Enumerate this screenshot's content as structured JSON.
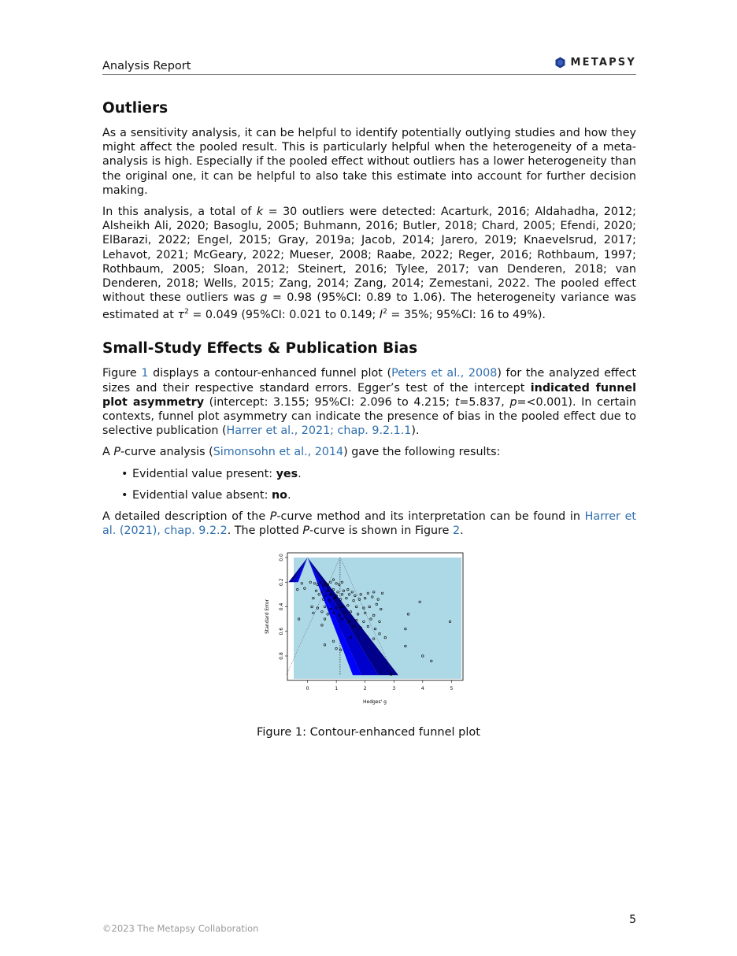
{
  "header": {
    "title": "Analysis Report",
    "brand": "METAPSY"
  },
  "outliers": {
    "heading": "Outliers",
    "p1": "As a sensitivity analysis, it can be helpful to identify potentially outlying studies and how they might affect the pooled result. This is particularly helpful when the heterogeneity of a meta-analysis is high. Especially if the pooled effect without outliers has a lower heterogeneity than the original one, it can be helpful to also take this estimate into account for further decision making.",
    "p2_a": "In this analysis, a total of ",
    "p2_k": "k",
    "p2_b": " = 30 outliers were detected: Acarturk, 2016; Aldahadha, 2012; Alsheikh Ali, 2020; Basoglu, 2005; Buhmann, 2016; Butler, 2018; Chard, 2005; Efendi, 2020; ElBarazi, 2022; Engel, 2015; Gray, 2019a; Jacob, 2014; Jarero, 2019; Knaevelsrud, 2017; Lehavot, 2021; McGeary, 2022; Mueser, 2008; Raabe, 2022; Reger, 2016; Rothbaum, 1997; Rothbaum, 2005; Sloan, 2012; Steinert, 2016; Tylee, 2017; van Denderen, 2018; van Denderen, 2018; Wells, 2015; Zang, 2014; Zang, 2014; Zemestani, 2022. The pooled effect without these outliers was ",
    "p2_g": "g",
    "p2_c": " = 0.98 (95%CI: 0.89 to 1.06). The heterogeneity variance was estimated at ",
    "p2_tau": "τ",
    "p2_tau_sup": "2",
    "p2_d": " = 0.049 (95%CI: 0.021 to 0.149; ",
    "p2_i": "I",
    "p2_i_sup": "2",
    "p2_e": " = 35%; 95%CI: 16 to 49%)."
  },
  "bias": {
    "heading": "Small-Study Effects & Publication Bias",
    "p1_a": "Figure ",
    "p1_fig": "1",
    "p1_b": " displays a contour-enhanced funnel plot (",
    "p1_ref1": "Peters et al., 2008",
    "p1_c": ") for the analyzed effect sizes and their respective standard errors. Egger’s test of the intercept ",
    "p1_bold": "indicated funnel plot asymmetry",
    "p1_d": " (intercept: 3.155; 95%CI: 2.096 to 4.215; ",
    "p1_t": "t",
    "p1_e": "=5.837, ",
    "p1_p": "p",
    "p1_f": "=<0.001). In certain contexts, funnel plot asymmetry can indicate the presence of bias in the pooled effect due to selective publication (",
    "p1_ref2": "Harrer et al., 2021; chap. 9.2.1.1",
    "p1_g": ").",
    "p2_a": "A ",
    "p2_P": "P",
    "p2_b": "-curve analysis (",
    "p2_ref": "Simonsohn et al., 2014",
    "p2_c": ") gave the following results:",
    "bullets": [
      {
        "label": "Evidential value present: ",
        "value": "yes",
        "end": "."
      },
      {
        "label": "Evidential value absent: ",
        "value": "no",
        "end": "."
      }
    ],
    "p3_a": "A detailed description of the ",
    "p3_P": "P",
    "p3_b": "-curve method and its interpretation can be found in ",
    "p3_ref": "Harrer et al. (2021), chap. 9.2.2",
    "p3_c": ". The plotted ",
    "p3_P2": "P",
    "p3_d": "-curve is shown in Figure ",
    "p3_fig": "2",
    "p3_e": "."
  },
  "figure": {
    "caption": "Figure 1: Contour-enhanced funnel plot"
  },
  "chart_data": {
    "type": "scatter",
    "title": "",
    "xlabel": "Hedges' g",
    "ylabel": "Standard Error",
    "xlim": [
      -0.7,
      5.4
    ],
    "ylim": [
      0.96,
      0.0
    ],
    "x_ticks": [
      0,
      1,
      2,
      3,
      4,
      5
    ],
    "y_ticks": [
      0.0,
      0.2,
      0.4,
      0.6,
      0.8
    ],
    "pooled_estimate": 1.13,
    "funnel_center_outer": 0.0,
    "colors": {
      "background": "#add8e6",
      "contour_dark": "#00008b",
      "contour_mid": "#0000cd",
      "contour_light": "#0000ff"
    },
    "points": [
      [
        -0.2,
        0.21
      ],
      [
        -0.35,
        0.26
      ],
      [
        -0.1,
        0.25
      ],
      [
        0.1,
        0.2
      ],
      [
        0.25,
        0.21
      ],
      [
        0.35,
        0.22
      ],
      [
        0.45,
        0.2
      ],
      [
        0.55,
        0.23
      ],
      [
        0.6,
        0.21
      ],
      [
        0.7,
        0.22
      ],
      [
        0.8,
        0.2
      ],
      [
        0.9,
        0.18
      ],
      [
        1.0,
        0.21
      ],
      [
        1.1,
        0.22
      ],
      [
        1.2,
        0.2
      ],
      [
        0.3,
        0.27
      ],
      [
        0.5,
        0.28
      ],
      [
        0.7,
        0.27
      ],
      [
        0.9,
        0.26
      ],
      [
        1.05,
        0.28
      ],
      [
        1.25,
        0.27
      ],
      [
        1.4,
        0.26
      ],
      [
        1.55,
        0.28
      ],
      [
        0.4,
        0.3
      ],
      [
        0.6,
        0.31
      ],
      [
        0.8,
        0.3
      ],
      [
        1.0,
        0.31
      ],
      [
        1.2,
        0.3
      ],
      [
        1.45,
        0.3
      ],
      [
        1.65,
        0.31
      ],
      [
        1.85,
        0.3
      ],
      [
        2.1,
        0.29
      ],
      [
        2.3,
        0.28
      ],
      [
        0.2,
        0.33
      ],
      [
        0.55,
        0.34
      ],
      [
        0.75,
        0.35
      ],
      [
        0.95,
        0.33
      ],
      [
        1.15,
        0.34
      ],
      [
        1.35,
        0.33
      ],
      [
        1.6,
        0.35
      ],
      [
        1.8,
        0.34
      ],
      [
        2.0,
        0.33
      ],
      [
        2.25,
        0.32
      ],
      [
        2.45,
        0.34
      ],
      [
        2.6,
        0.29
      ],
      [
        0.15,
        0.4
      ],
      [
        0.35,
        0.41
      ],
      [
        0.6,
        0.4
      ],
      [
        0.8,
        0.42
      ],
      [
        1.0,
        0.41
      ],
      [
        1.2,
        0.4
      ],
      [
        1.4,
        0.39
      ],
      [
        1.7,
        0.4
      ],
      [
        1.95,
        0.41
      ],
      [
        2.15,
        0.4
      ],
      [
        2.4,
        0.38
      ],
      [
        0.2,
        0.45
      ],
      [
        0.5,
        0.44
      ],
      [
        0.7,
        0.46
      ],
      [
        0.9,
        0.45
      ],
      [
        1.1,
        0.47
      ],
      [
        1.3,
        0.45
      ],
      [
        1.5,
        0.44
      ],
      [
        1.75,
        0.46
      ],
      [
        2.0,
        0.45
      ],
      [
        2.3,
        0.47
      ],
      [
        2.55,
        0.42
      ],
      [
        -0.3,
        0.5
      ],
      [
        0.6,
        0.5
      ],
      [
        1.2,
        0.5
      ],
      [
        1.45,
        0.52
      ],
      [
        1.7,
        0.51
      ],
      [
        1.95,
        0.52
      ],
      [
        2.2,
        0.5
      ],
      [
        2.5,
        0.52
      ],
      [
        1.6,
        0.56
      ],
      [
        1.85,
        0.57
      ],
      [
        2.1,
        0.56
      ],
      [
        2.35,
        0.58
      ],
      [
        0.5,
        0.55
      ],
      [
        3.5,
        0.46
      ],
      [
        3.9,
        0.36
      ],
      [
        3.4,
        0.58
      ],
      [
        4.95,
        0.52
      ],
      [
        2.5,
        0.62
      ],
      [
        2.7,
        0.65
      ],
      [
        1.5,
        0.65
      ],
      [
        2.3,
        0.66
      ],
      [
        1.0,
        0.74
      ],
      [
        0.6,
        0.71
      ],
      [
        3.4,
        0.72
      ],
      [
        4.0,
        0.8
      ],
      [
        4.3,
        0.84
      ],
      [
        2.9,
        0.95
      ],
      [
        1.15,
        0.75
      ],
      [
        0.9,
        0.68
      ]
    ]
  }
}
